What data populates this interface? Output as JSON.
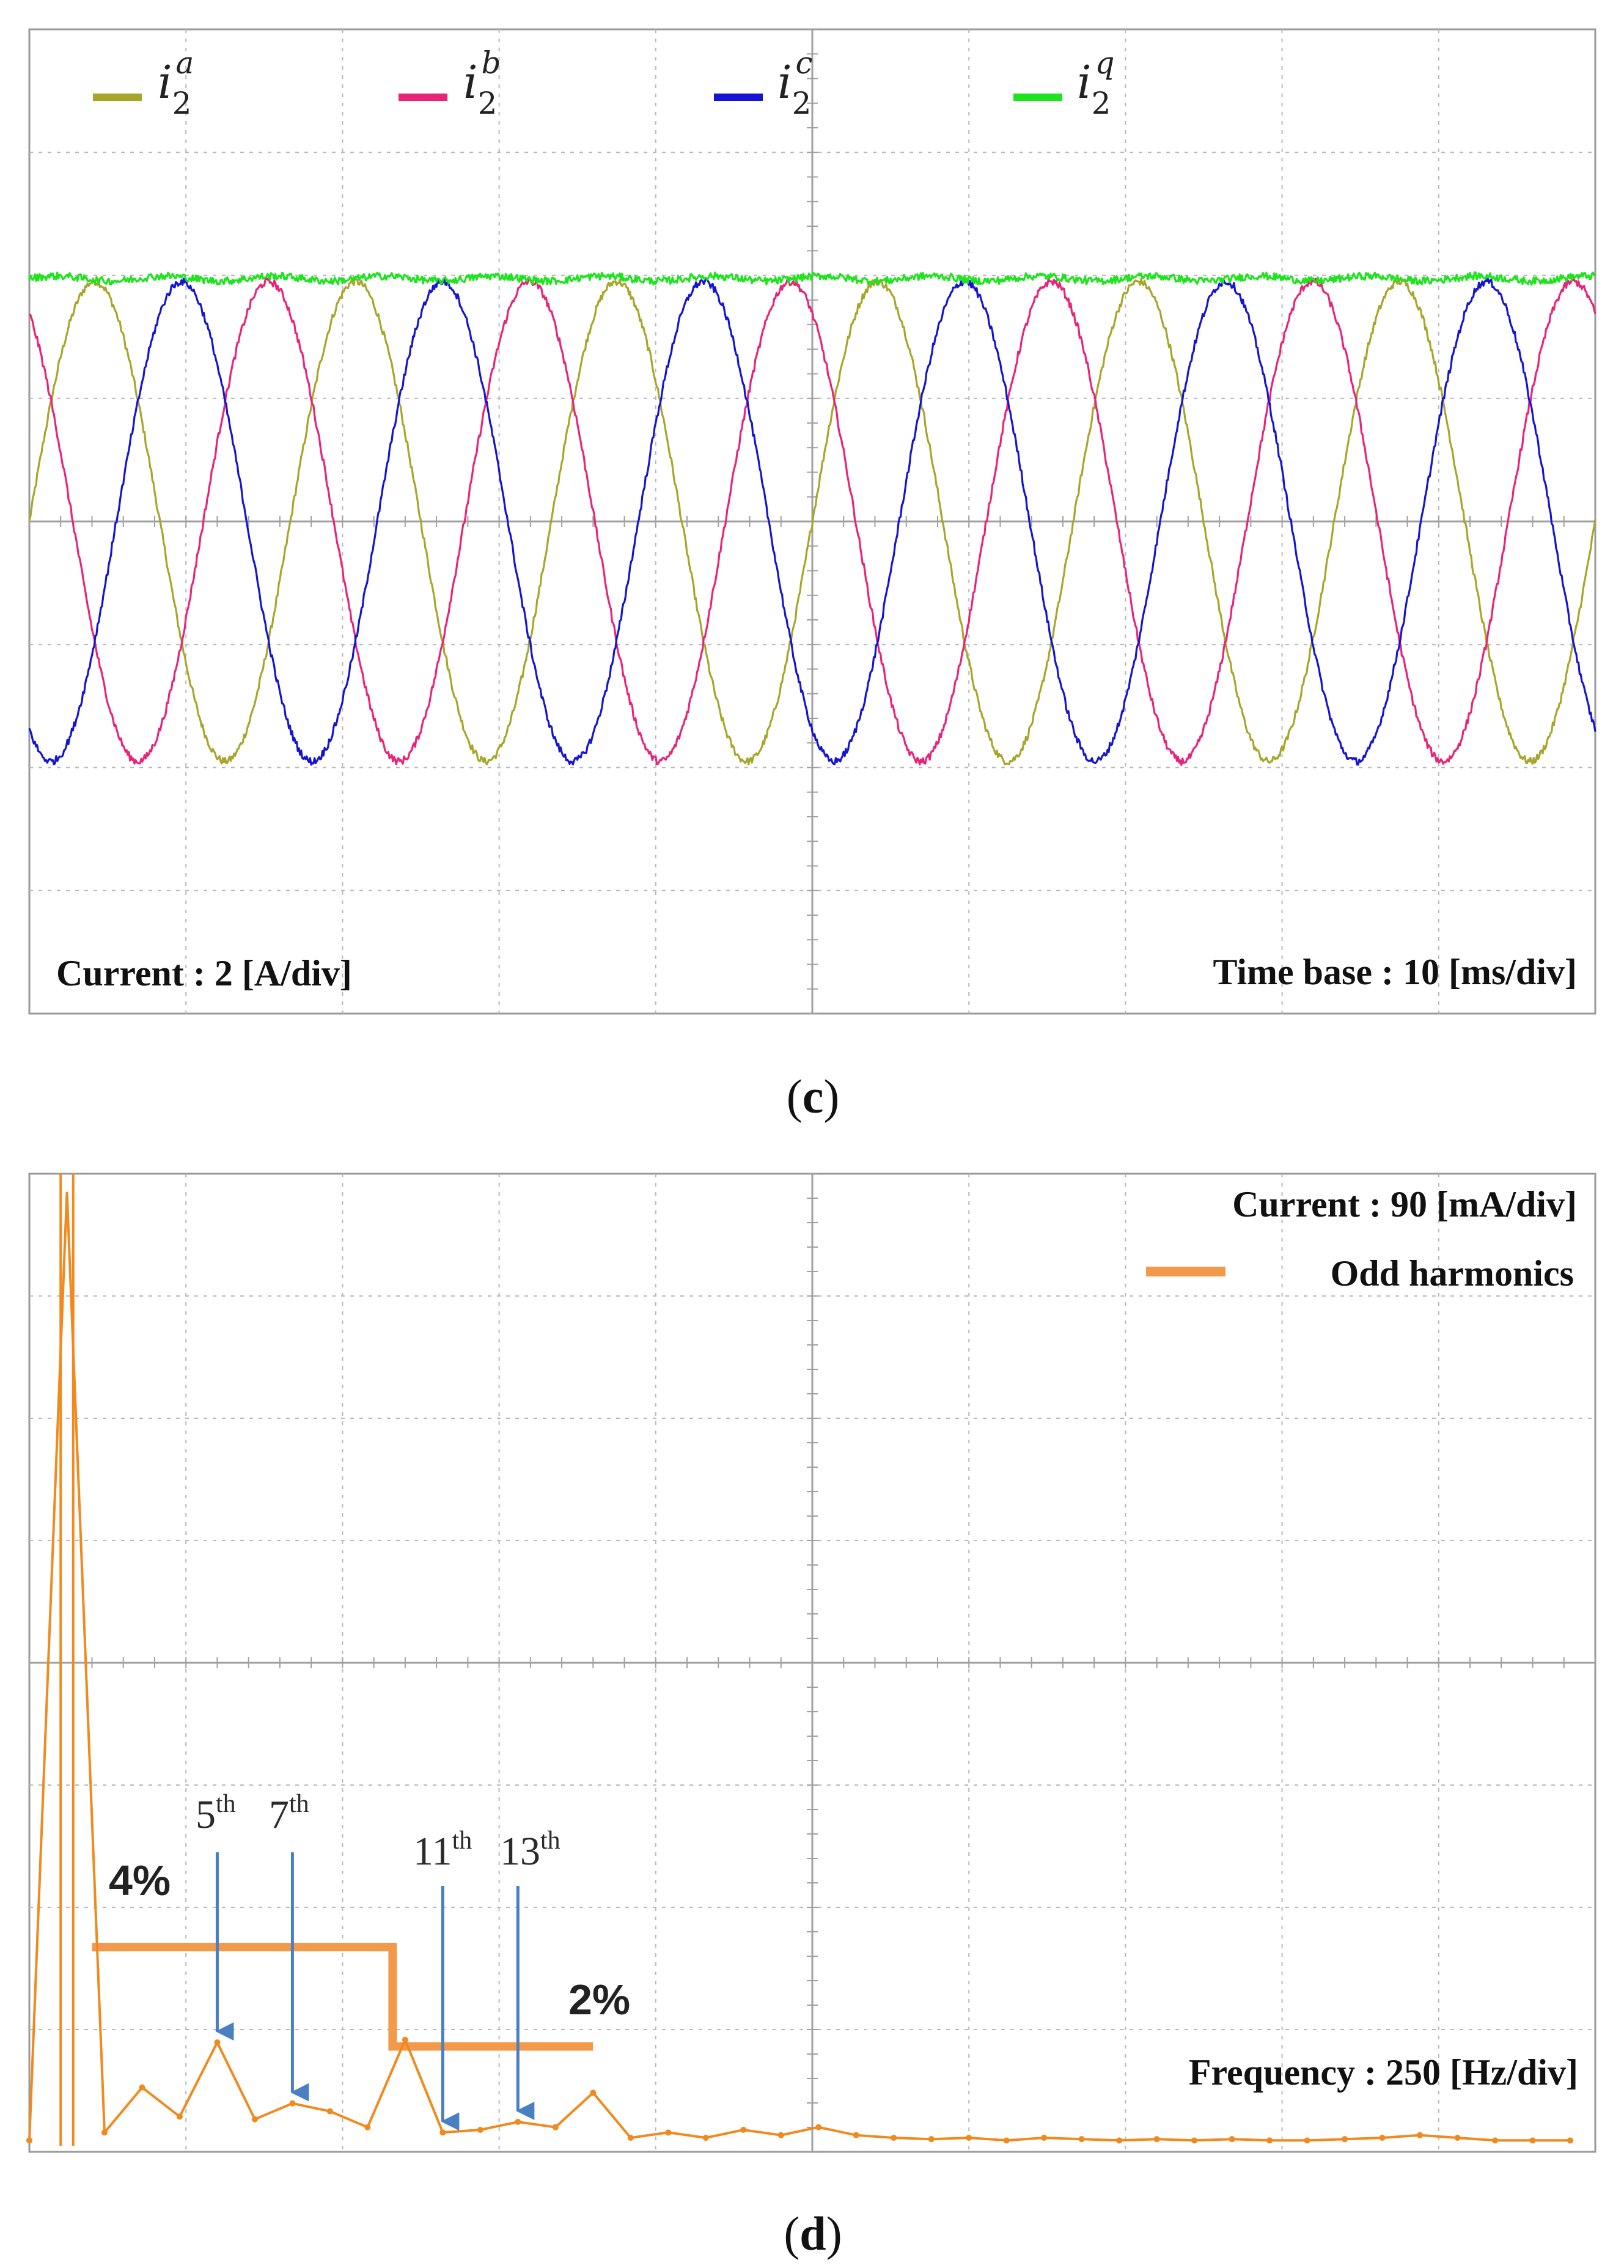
{
  "panels": {
    "c": {
      "caption_letter": "c",
      "scale_text": "Current : 2 [A/div]",
      "timebase_text": "Time base : 10 [ms/div]"
    },
    "d": {
      "caption_letter": "d",
      "scale_text": "Current : 90 [mA/div]",
      "legend_text": "Odd harmonics",
      "freq_text": "Frequency : 250 [Hz/div]",
      "limit_4_text": "4%",
      "limit_2_text": "2%",
      "harmonic_labels": [
        {
          "base": "5",
          "sup": "th"
        },
        {
          "base": "7",
          "sup": "th"
        },
        {
          "base": "11",
          "sup": "th"
        },
        {
          "base": "13",
          "sup": "th"
        }
      ]
    }
  },
  "colors": {
    "ia": "#a8a62a",
    "ib": "#e8247a",
    "ic": "#1414d2",
    "iq": "#1de41d",
    "harmonics": "#f39a4a",
    "spectrum": "#f08a1e",
    "arrow": "#4a7fc1",
    "grid": "#b8b8b8"
  },
  "chart_data": [
    {
      "type": "line",
      "panel": "c",
      "title": "",
      "legend": [
        {
          "symbol": "i",
          "sub": "2",
          "sup": "a"
        },
        {
          "symbol": "i",
          "sub": "2",
          "sup": "b"
        },
        {
          "symbol": "i",
          "sub": "2",
          "sup": "c"
        },
        {
          "symbol": "i",
          "sub": "2",
          "sup": "q"
        }
      ],
      "x_unit": "ms",
      "y_unit": "A",
      "xlim": [
        0,
        100
      ],
      "ylim": [
        -8,
        8
      ],
      "x_divisions": 10,
      "y_divisions": 8,
      "grid": true,
      "series": [
        {
          "name": "i2a",
          "kind": "sine",
          "amplitude_A": 3.9,
          "frequency_Hz": 60,
          "phase_deg": 0
        },
        {
          "name": "i2b",
          "kind": "sine",
          "amplitude_A": 3.9,
          "frequency_Hz": 60,
          "phase_deg": 120
        },
        {
          "name": "i2c",
          "kind": "sine",
          "amplitude_A": 3.9,
          "frequency_Hz": 60,
          "phase_deg": -120
        },
        {
          "name": "i2q",
          "kind": "dc",
          "value_A": 3.95,
          "ripple_A": 0.12
        }
      ]
    },
    {
      "type": "line",
      "panel": "d",
      "title": "",
      "x_unit": "Hz",
      "y_unit": "mA",
      "xlim": [
        0,
        2500
      ],
      "ylim": [
        0,
        720
      ],
      "x_divisions": 10,
      "y_divisions": 8,
      "grid": true,
      "harmonic_spectrum": {
        "x": [
          0,
          60,
          120,
          180,
          240,
          300,
          360,
          420,
          480,
          540,
          600,
          660,
          720,
          780,
          840,
          900,
          960,
          1020,
          1080,
          1140,
          1200,
          1260,
          1320,
          1380,
          1440,
          1500,
          1560,
          1620,
          1680,
          1740,
          1800,
          1860,
          1920,
          1980,
          2040,
          2100,
          2160,
          2220,
          2280,
          2340,
          2400,
          2460
        ],
        "y": [
          4,
          720,
          10,
          44,
          22,
          78,
          20,
          32,
          26,
          14,
          80,
          10,
          12,
          18,
          14,
          40,
          6,
          10,
          6,
          12,
          8,
          14,
          8,
          6,
          5,
          6,
          4,
          6,
          5,
          4,
          5,
          4,
          5,
          4,
          4,
          5,
          6,
          8,
          6,
          4,
          4,
          4
        ]
      },
      "fundamental_clipped": true,
      "limit_line": [
        {
          "from_Hz": 100,
          "to_Hz": 580,
          "level_mA": 150,
          "label": "4%"
        },
        {
          "from_Hz": 580,
          "to_Hz": 900,
          "level_mA": 75,
          "label": "2%"
        }
      ],
      "annotated_harmonics": [
        {
          "label": "5th",
          "freq_Hz": 300,
          "value_mA": 78
        },
        {
          "label": "7th",
          "freq_Hz": 420,
          "value_mA": 32
        },
        {
          "label": "11th",
          "freq_Hz": 660,
          "value_mA": 10
        },
        {
          "label": "13th",
          "freq_Hz": 780,
          "value_mA": 18
        }
      ]
    }
  ]
}
